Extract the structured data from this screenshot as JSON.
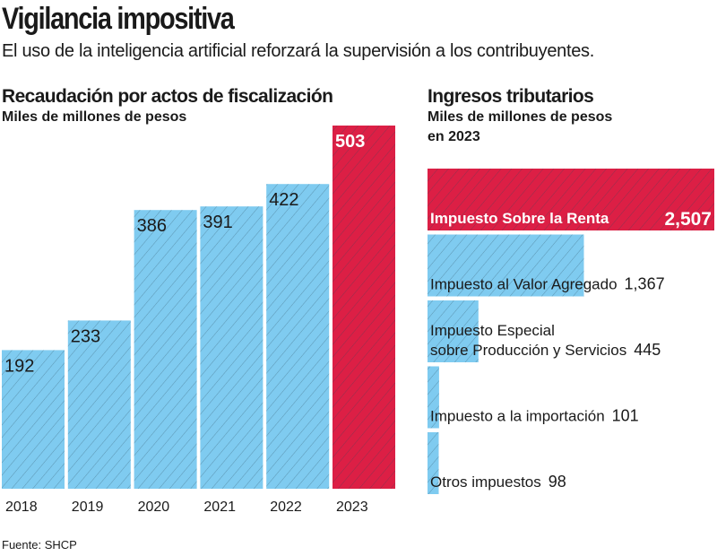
{
  "title": "Vigilancia impositiva",
  "subtitle": "El uso de la inteligencia artificial reforzará la supervisión a los contribuyentes.",
  "source": "Fuente: SHCP",
  "colors": {
    "blue": "#7fcbf0",
    "red": "#dc1f45",
    "hatch": "#2a4a5a"
  },
  "chart_data": [
    {
      "type": "bar",
      "title": "Recaudación por actos de fiscalización",
      "subtitle": "Miles de millones de pesos",
      "categories": [
        "2018",
        "2019",
        "2020",
        "2021",
        "2022",
        "2023"
      ],
      "values": [
        192,
        233,
        386,
        391,
        422,
        503
      ],
      "highlight": "2023"
    },
    {
      "type": "bar",
      "orientation": "horizontal",
      "title": "Ingresos tributarios",
      "subtitle": "Miles de millones de pesos en 2023",
      "subtitle_lines": [
        "Miles de millones de pesos",
        "en 2023"
      ],
      "categories": [
        "Impuesto Sobre la Renta",
        "Impuesto al Valor Agregado",
        "Impuesto Especial sobre Producción y Servicios",
        "Impuesto a la importación",
        "Otros impuestos"
      ],
      "label_lines": [
        [
          "Impuesto Sobre la Renta"
        ],
        [
          "Impuesto al Valor Agregado"
        ],
        [
          "Impuesto Especial",
          "sobre Producción y Servicios"
        ],
        [
          "Impuesto a la importación"
        ],
        [
          "Otros impuestos"
        ]
      ],
      "values": [
        2507,
        1367,
        445,
        101,
        98
      ],
      "value_labels": [
        "2,507",
        "1,367",
        "445",
        "101",
        "98"
      ],
      "highlight": "Impuesto Sobre la Renta"
    }
  ]
}
